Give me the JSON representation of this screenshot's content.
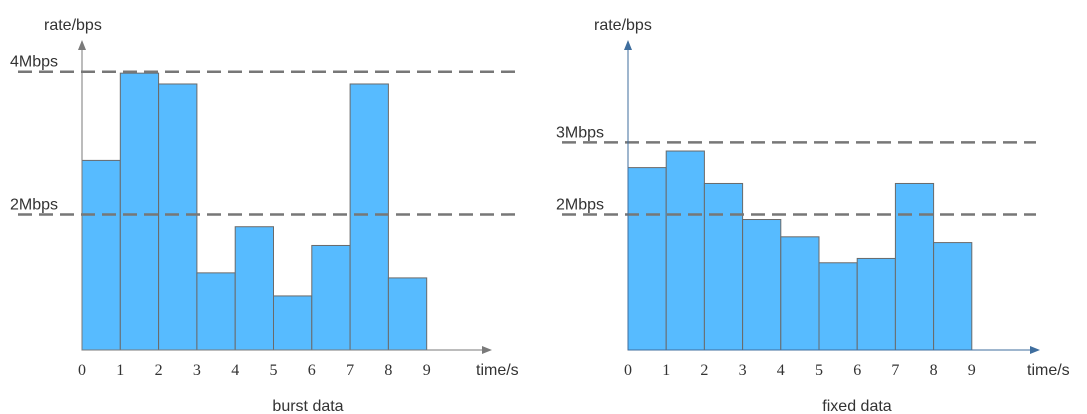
{
  "colors": {
    "bar": "#57BBFF",
    "bar_edge": "#6a6a6a",
    "axis": "#7a7a7a",
    "dash": "#777777",
    "arrow_right": "#3f6e9e"
  },
  "chart_data": [
    {
      "type": "bar",
      "title": "burst data",
      "xlabel": "time/s",
      "ylabel": "rate/bps",
      "x_ticks": [
        "0",
        "1",
        "2",
        "3",
        "4",
        "5",
        "6",
        "7",
        "8",
        "9"
      ],
      "bins": [
        [
          0,
          1
        ],
        [
          1,
          2
        ],
        [
          2,
          3
        ],
        [
          3,
          4
        ],
        [
          4,
          5
        ],
        [
          5,
          6
        ],
        [
          6,
          7
        ],
        [
          7,
          8
        ],
        [
          8,
          9
        ]
      ],
      "values": [
        2.63,
        3.84,
        3.69,
        1.07,
        1.71,
        0.75,
        1.45,
        3.69,
        1.0
      ],
      "ylim": [
        0,
        4.3
      ],
      "reference_lines": [
        {
          "label": "4Mbps",
          "value": 3.86
        },
        {
          "label": "2Mbps",
          "value": 1.88
        }
      ],
      "grid": false,
      "legend": "none"
    },
    {
      "type": "bar",
      "title": "fixed data",
      "xlabel": "time/s",
      "ylabel": "rate/bps",
      "x_ticks": [
        "0",
        "1",
        "2",
        "3",
        "4",
        "5",
        "6",
        "7",
        "8",
        "9"
      ],
      "bins": [
        [
          0,
          1
        ],
        [
          1,
          2
        ],
        [
          2,
          3
        ],
        [
          3,
          4
        ],
        [
          4,
          5
        ],
        [
          5,
          6
        ],
        [
          6,
          7
        ],
        [
          7,
          8
        ],
        [
          8,
          9
        ]
      ],
      "values": [
        2.53,
        2.76,
        2.31,
        1.81,
        1.57,
        1.21,
        1.27,
        2.31,
        1.49
      ],
      "ylim": [
        0,
        4.3
      ],
      "reference_lines": [
        {
          "label": "3Mbps",
          "value": 2.88
        },
        {
          "label": "2Mbps",
          "value": 1.88
        }
      ],
      "grid": false,
      "legend": "none"
    }
  ]
}
